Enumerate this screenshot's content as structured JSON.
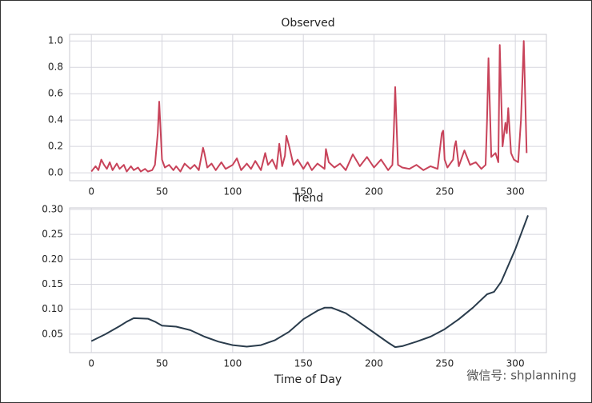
{
  "chart_data": [
    {
      "type": "line",
      "title": "Observed",
      "x": [
        0,
        3,
        5,
        7,
        9,
        11,
        13,
        15,
        18,
        20,
        23,
        25,
        28,
        30,
        33,
        35,
        38,
        40,
        43,
        45,
        47,
        48,
        50,
        52,
        55,
        58,
        60,
        63,
        66,
        70,
        73,
        76,
        79,
        80,
        82,
        85,
        88,
        92,
        95,
        100,
        103,
        106,
        110,
        113,
        116,
        120,
        123,
        125,
        128,
        131,
        133,
        135,
        137,
        138,
        140,
        143,
        146,
        150,
        153,
        156,
        160,
        165,
        166,
        168,
        172,
        176,
        180,
        185,
        190,
        195,
        200,
        205,
        210,
        213,
        214,
        215,
        217,
        220,
        225,
        230,
        235,
        240,
        245,
        248,
        249,
        250,
        252,
        256,
        257,
        258,
        260,
        264,
        268,
        272,
        276,
        279,
        280,
        281,
        283,
        286,
        288,
        289,
        291,
        293,
        294,
        295,
        297,
        299,
        302,
        304,
        305,
        306,
        308
      ],
      "series": [
        {
          "name": "Observed",
          "color": "#c8435a",
          "values": [
            0.01,
            0.05,
            0.02,
            0.1,
            0.06,
            0.03,
            0.08,
            0.02,
            0.07,
            0.03,
            0.06,
            0.01,
            0.05,
            0.02,
            0.04,
            0.01,
            0.03,
            0.01,
            0.02,
            0.06,
            0.3,
            0.54,
            0.1,
            0.04,
            0.06,
            0.02,
            0.05,
            0.01,
            0.07,
            0.03,
            0.06,
            0.02,
            0.19,
            0.15,
            0.04,
            0.07,
            0.02,
            0.08,
            0.03,
            0.06,
            0.11,
            0.02,
            0.07,
            0.03,
            0.09,
            0.02,
            0.15,
            0.06,
            0.1,
            0.03,
            0.22,
            0.05,
            0.13,
            0.28,
            0.2,
            0.06,
            0.1,
            0.03,
            0.08,
            0.02,
            0.07,
            0.03,
            0.18,
            0.08,
            0.04,
            0.07,
            0.02,
            0.14,
            0.05,
            0.12,
            0.04,
            0.1,
            0.02,
            0.06,
            0.3,
            0.65,
            0.06,
            0.04,
            0.03,
            0.06,
            0.02,
            0.05,
            0.03,
            0.3,
            0.32,
            0.1,
            0.04,
            0.1,
            0.2,
            0.24,
            0.05,
            0.17,
            0.06,
            0.08,
            0.03,
            0.06,
            0.4,
            0.87,
            0.12,
            0.15,
            0.08,
            0.97,
            0.2,
            0.38,
            0.3,
            0.49,
            0.15,
            0.1,
            0.08,
            0.4,
            0.7,
            1.0,
            0.15
          ]
        }
      ],
      "xlim": [
        -15.4,
        322
      ],
      "xticks": [
        0,
        50,
        100,
        150,
        200,
        250,
        300
      ],
      "ylim": [
        -0.06,
        1.05
      ],
      "yticks": [
        {
          "value": 0,
          "label": "0.0"
        },
        0.2,
        0.4,
        0.6,
        0.8,
        {
          "value": 1,
          "label": "1.0"
        }
      ],
      "grid": true
    },
    {
      "type": "line",
      "title": "Trend",
      "xlabel": "Time of Day",
      "x": [
        0,
        10,
        20,
        25,
        30,
        40,
        45,
        50,
        60,
        70,
        80,
        90,
        100,
        110,
        120,
        130,
        140,
        150,
        160,
        165,
        170,
        180,
        190,
        200,
        210,
        215,
        220,
        230,
        240,
        250,
        260,
        270,
        280,
        285,
        290,
        300,
        309
      ],
      "series": [
        {
          "name": "Trend",
          "color": "#2a3c4c",
          "values": [
            0.036,
            0.05,
            0.066,
            0.075,
            0.082,
            0.081,
            0.075,
            0.067,
            0.065,
            0.058,
            0.045,
            0.035,
            0.028,
            0.025,
            0.028,
            0.038,
            0.055,
            0.08,
            0.097,
            0.103,
            0.103,
            0.092,
            0.073,
            0.053,
            0.033,
            0.024,
            0.026,
            0.035,
            0.045,
            0.06,
            0.08,
            0.103,
            0.13,
            0.135,
            0.155,
            0.22,
            0.288
          ]
        }
      ],
      "xlim": [
        -15.4,
        322
      ],
      "xticks": [
        0,
        50,
        100,
        150,
        200,
        250,
        300
      ],
      "ylim": [
        0.013,
        0.303
      ],
      "yticks": [
        0.05,
        {
          "value": 0.1,
          "label": "0.10"
        },
        0.15,
        {
          "value": 0.2,
          "label": "0.20"
        },
        0.25,
        {
          "value": 0.3,
          "label": "0.30"
        }
      ],
      "grid": true
    }
  ],
  "watermark": "微信号: shplanning"
}
